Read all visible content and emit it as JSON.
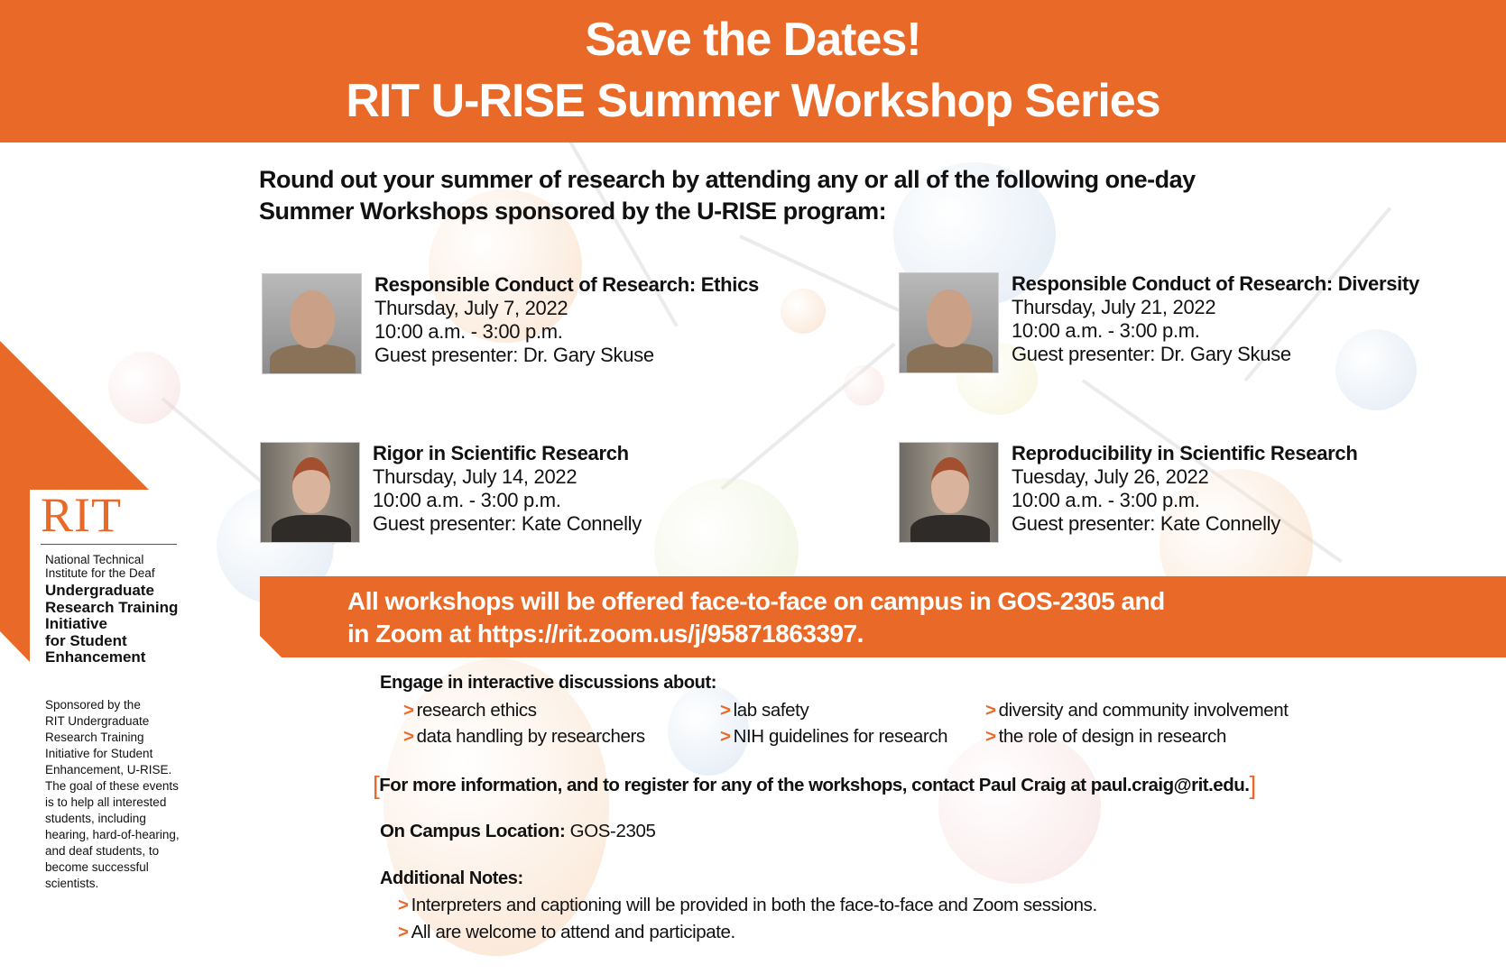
{
  "header": {
    "line1": "Save the Dates!",
    "line2": "RIT U-RISE Summer Workshop Series"
  },
  "intro": {
    "line1": "Round out your summer of research by attending any or all of the following one-day",
    "line2": "Summer Workshops sponsored by the U-RISE program:"
  },
  "workshops": [
    {
      "title": "Responsible Conduct of Research: Ethics",
      "date": "Thursday, July 7, 2022",
      "time": "10:00 a.m. - 3:00 p.m.",
      "presenter": "Guest presenter: Dr. Gary Skuse"
    },
    {
      "title": "Responsible Conduct of Research: Diversity",
      "date": "Thursday, July 21, 2022",
      "time": "10:00 a.m. - 3:00 p.m.",
      "presenter": "Guest presenter: Dr. Gary Skuse"
    },
    {
      "title": "Rigor in Scientific Research",
      "date": "Thursday, July 14, 2022",
      "time": "10:00 a.m. - 3:00 p.m.",
      "presenter": "Guest presenter:  Kate Connelly"
    },
    {
      "title": "Reproducibility in Scientific Research",
      "date": "Tuesday, July 26, 2022",
      "time": "10:00 a.m. - 3:00 p.m.",
      "presenter": "Guest presenter:  Kate Connelly"
    }
  ],
  "sidebar": {
    "logo": "RIT",
    "ntid_line1": "National Technical",
    "ntid_line2": "Institute for the Deaf",
    "urise": [
      "Undergraduate",
      "Research Training",
      "Initiative",
      "for Student",
      "Enhancement"
    ],
    "sponsor": [
      "Sponsored by the",
      "RIT Undergraduate",
      "Research Training",
      "Initiative for Student",
      "Enhancement, U-RISE.",
      "The goal of these events",
      "is to help all interested",
      "students, including",
      "hearing, hard-of-hearing,",
      "and deaf students, to",
      "become successful",
      "scientists."
    ]
  },
  "banner": {
    "line1": "All workshops will be offered face-to-face on campus in GOS-2305 and",
    "line2": "in Zoom at https://rit.zoom.us/j/95871863397."
  },
  "engage": {
    "label": "Engage in interactive discussions about:",
    "topics": [
      "research ethics",
      "data handling by researchers",
      "lab safety",
      "NIH guidelines for research",
      "diversity and community involvement",
      "the role of design in research"
    ]
  },
  "contact": {
    "text": "For more information, and to register for any of the workshops, contact Paul Craig at paul.craig@rit.edu."
  },
  "location": {
    "label": "On Campus Location:",
    "value": " GOS-2305"
  },
  "notes": {
    "label": "Additional Notes:",
    "items": [
      "Interpreters and captioning will be provided in both the face-to-face and Zoom sessions.",
      "All are welcome to attend and participate."
    ]
  },
  "colors": {
    "accent": "#e96a28"
  }
}
